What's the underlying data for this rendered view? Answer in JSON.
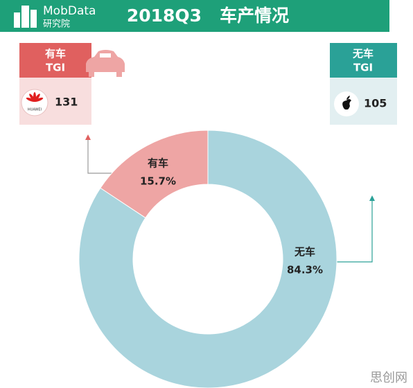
{
  "header": {
    "brand": "MobData",
    "brand_sub": "研究院",
    "title": "2018Q3   车产情况"
  },
  "cards": [
    {
      "label": "有车",
      "metric": "TGI",
      "brand": "HUAWEI",
      "value": "131"
    },
    {
      "label": "无车",
      "metric": "TGI",
      "value": "105"
    }
  ],
  "chart_data": {
    "type": "pie",
    "donut": true,
    "categories": [
      "有车",
      "无车"
    ],
    "values": [
      15.7,
      84.3
    ],
    "value_labels": [
      "15.7%",
      "84.3%"
    ],
    "colors": [
      "#eea5a4",
      "#a9d4dd"
    ]
  },
  "watermark": "思创网"
}
